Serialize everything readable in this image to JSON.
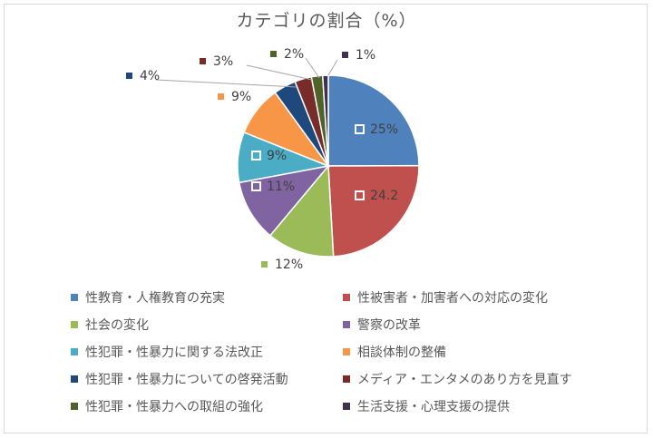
{
  "chart_data": {
    "type": "pie",
    "title": "カテゴリの割合（%）",
    "legend_position": "bottom",
    "series": [
      {
        "name": "性教育・人権教育の充実",
        "value": 25,
        "label": "25%",
        "color": "#4f81bd"
      },
      {
        "name": "性被害者・加害者への対応の変化",
        "value": 24.2,
        "label": "24.2",
        "color": "#c0504d"
      },
      {
        "name": "社会の変化",
        "value": 12,
        "label": "12%",
        "color": "#9bbb59"
      },
      {
        "name": "警察の改革",
        "value": 11,
        "label": "11%",
        "color": "#8064a2"
      },
      {
        "name": "性犯罪・性暴力に関する法改正",
        "value": 9,
        "label": "9%",
        "color": "#4bacc6"
      },
      {
        "name": "相談体制の整備",
        "value": 9,
        "label": "9%",
        "color": "#f79646"
      },
      {
        "name": "性犯罪・性暴力についての啓発活動",
        "value": 4,
        "label": "4%",
        "color": "#1f497d"
      },
      {
        "name": "メディア・エンタメのあり方を見直す",
        "value": 3,
        "label": "3%",
        "color": "#772c2a"
      },
      {
        "name": "性犯罪・性暴力への取組の強化",
        "value": 2,
        "label": "2%",
        "color": "#4f6228"
      },
      {
        "name": "生活支援・心理支援の提供",
        "value": 1,
        "label": "1%",
        "color": "#3f3151"
      }
    ]
  }
}
